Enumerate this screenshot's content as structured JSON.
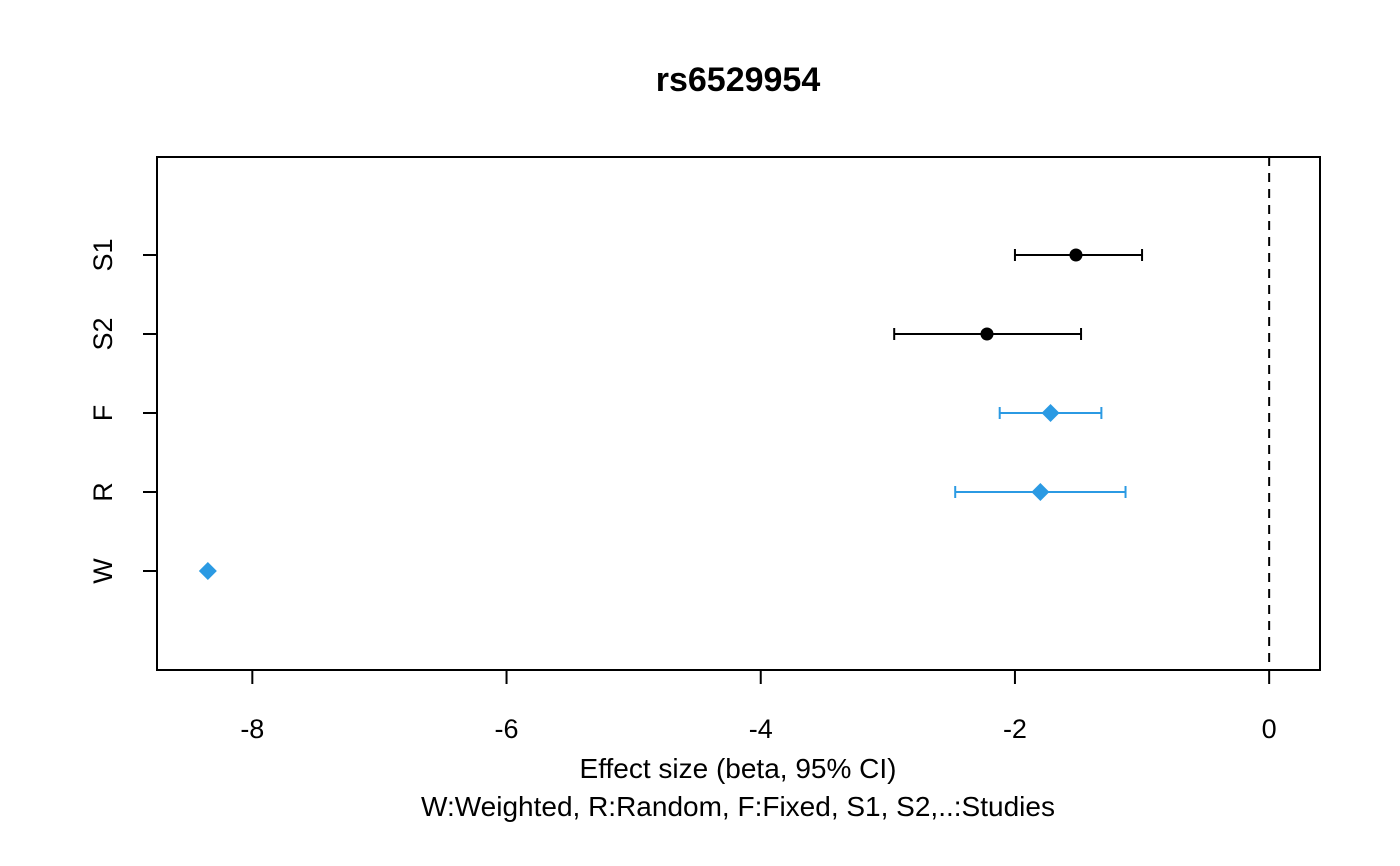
{
  "chart_data": {
    "type": "forest",
    "title": "rs6529954",
    "xlabel": "Effect size (beta, 95% CI)",
    "note": "W:Weighted, R:Random, F:Fixed, S1, S2,..:Studies",
    "xlim": [
      -8.75,
      0.4
    ],
    "xticks": [
      -8,
      -6,
      -4,
      -2,
      0
    ],
    "xtick_labels": [
      "-8",
      "-6",
      "-4",
      "-2",
      "0"
    ],
    "reference_line": 0,
    "grid": false,
    "colors": {
      "study": "#000000",
      "summary": "#2b9ae3"
    },
    "rows": [
      {
        "label": "S1",
        "estimate": -1.52,
        "lower": -2.0,
        "upper": -1.0,
        "kind": "study",
        "marker": "circle"
      },
      {
        "label": "S2",
        "estimate": -2.22,
        "lower": -2.95,
        "upper": -1.48,
        "kind": "study",
        "marker": "circle"
      },
      {
        "label": "F",
        "estimate": -1.72,
        "lower": -2.12,
        "upper": -1.32,
        "kind": "summary",
        "marker": "diamond"
      },
      {
        "label": "R",
        "estimate": -1.8,
        "lower": -2.47,
        "upper": -1.13,
        "kind": "summary",
        "marker": "diamond"
      },
      {
        "label": "W",
        "estimate": -8.35,
        "lower": null,
        "upper": null,
        "kind": "summary",
        "marker": "diamond"
      }
    ]
  }
}
